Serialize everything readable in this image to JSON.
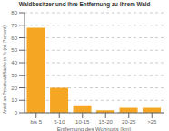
{
  "chart_data": {
    "type": "bar",
    "title": "Waldbesitzer und ihre Entfernung zu ihrem Wald",
    "categories": [
      "bis 5",
      "5-10",
      "10-15",
      "15-20",
      "20-25",
      ">25"
    ],
    "values": [
      68,
      20,
      6,
      2,
      4,
      4
    ],
    "color": "#F5A623",
    "xlabel": "Entfernung des Wohnorts (km)",
    "ylabel": "Anteil an Privatwaldfläche in % (nt. Percent)",
    "ylim": [
      0,
      80
    ],
    "yticks": [
      0,
      10,
      20,
      30,
      40,
      50,
      60,
      70,
      80
    ],
    "grid": true
  }
}
